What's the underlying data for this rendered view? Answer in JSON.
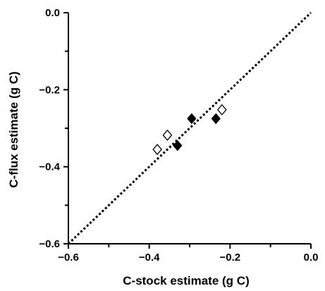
{
  "chart_data": {
    "type": "scatter",
    "title": "",
    "xlabel": "C-stock estimate (g C)",
    "ylabel": "C-flux estimate (g C)",
    "xlim": [
      -0.6,
      0.0
    ],
    "ylim": [
      -0.6,
      0.0
    ],
    "x_ticks": [
      -0.6,
      -0.4,
      -0.2,
      0.0
    ],
    "y_ticks": [
      -0.6,
      -0.4,
      -0.2,
      0.0
    ],
    "x_tick_labels": [
      "−0.6",
      "−0.4",
      "−0.2",
      "0.0"
    ],
    "y_tick_labels": [
      "−0.6",
      "−0.4",
      "−0.2",
      "0.0"
    ],
    "grid": false,
    "legend": null,
    "reference_line": {
      "style": "dotted",
      "x": [
        -0.6,
        0.0
      ],
      "y": [
        -0.6,
        0.0
      ]
    },
    "series": [
      {
        "marker": "filled-diamond",
        "color": "#000000",
        "points": [
          {
            "x": -0.33,
            "y": -0.345
          },
          {
            "x": -0.295,
            "y": -0.275
          },
          {
            "x": -0.235,
            "y": -0.275
          }
        ]
      },
      {
        "marker": "open-diamond",
        "color": "#000000",
        "points": [
          {
            "x": -0.38,
            "y": -0.355
          },
          {
            "x": -0.355,
            "y": -0.318
          },
          {
            "x": -0.22,
            "y": -0.252
          }
        ]
      }
    ]
  }
}
